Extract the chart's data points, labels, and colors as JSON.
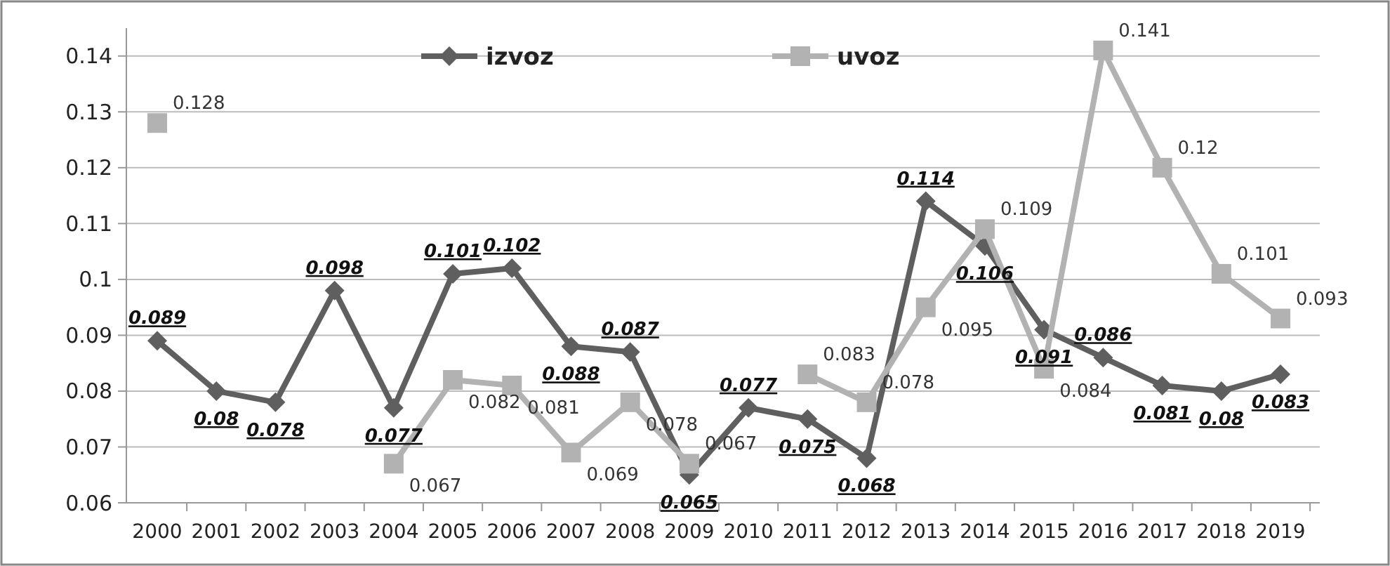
{
  "chart_data": {
    "type": "line",
    "categories": [
      "2000",
      "2001",
      "2002",
      "2003",
      "2004",
      "2005",
      "2006",
      "2007",
      "2008",
      "2009",
      "2010",
      "2011",
      "2012",
      "2013",
      "2014",
      "2015",
      "2016",
      "2017",
      "2018",
      "2019"
    ],
    "series": [
      {
        "name": "izvoz",
        "color": "#5f5f5f",
        "marker": "diamond",
        "values": [
          0.089,
          0.08,
          0.078,
          0.098,
          0.077,
          0.101,
          0.102,
          0.088,
          0.087,
          0.065,
          0.077,
          0.075,
          0.068,
          0.114,
          0.106,
          0.091,
          0.086,
          0.081,
          0.08,
          0.083
        ]
      },
      {
        "name": "uvoz",
        "color": "#b2b2b2",
        "marker": "square",
        "values": [
          0.128,
          null,
          null,
          null,
          0.067,
          0.082,
          0.081,
          0.069,
          0.078,
          0.067,
          null,
          0.083,
          0.078,
          0.095,
          0.109,
          0.084,
          0.141,
          0.12,
          0.101,
          0.093
        ]
      }
    ],
    "ylim": [
      0.06,
      0.145
    ],
    "yticks": [
      0.06,
      0.07,
      0.08,
      0.09,
      0.1,
      0.11,
      0.12,
      0.13,
      0.14
    ],
    "grid": "y",
    "legend": "top",
    "data_labels": true,
    "line_style": "solid"
  }
}
